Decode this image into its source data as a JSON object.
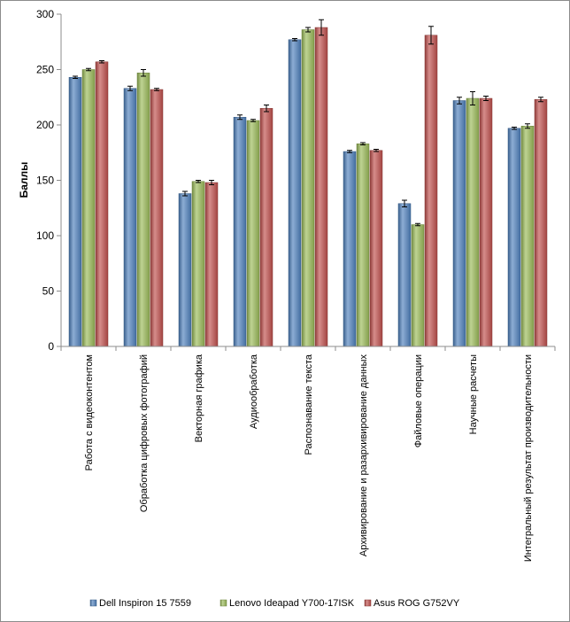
{
  "chart_data": {
    "type": "bar",
    "ylabel": "Баллы",
    "ylim": [
      0,
      300
    ],
    "yticks": [
      0,
      50,
      100,
      150,
      200,
      250,
      300
    ],
    "grid": false,
    "legend_position": "bottom",
    "categories": [
      "Работа с видеоконтентом",
      "Обработка цифровых фотографий",
      "Векторная графика",
      "Аудиообработка",
      "Распознавание текста",
      "Архивирование и разархивирование данных",
      "Файловые операции",
      "Научные расчеты",
      "Интегральный результат производительности"
    ],
    "series": [
      {
        "name": "Dell Inspiron 15 7559",
        "color": "#4f81bd",
        "values": [
          243,
          233,
          138,
          207,
          277,
          176,
          129,
          222,
          197
        ],
        "errors": [
          1,
          2,
          2,
          2,
          1,
          1,
          3,
          3,
          1
        ]
      },
      {
        "name": "Lenovo Ideapad Y700-17ISK",
        "color": "#9bbb59",
        "values": [
          250,
          247,
          149,
          204,
          286,
          183,
          110,
          224,
          199
        ],
        "errors": [
          1,
          3,
          1,
          1,
          2,
          1,
          1,
          6,
          2
        ]
      },
      {
        "name": "Asus ROG G752VY",
        "color": "#c0504d",
        "values": [
          257,
          232,
          148,
          215,
          288,
          177,
          281,
          224,
          223
        ],
        "errors": [
          1,
          1,
          2,
          3,
          7,
          1,
          8,
          2,
          2
        ]
      }
    ]
  }
}
